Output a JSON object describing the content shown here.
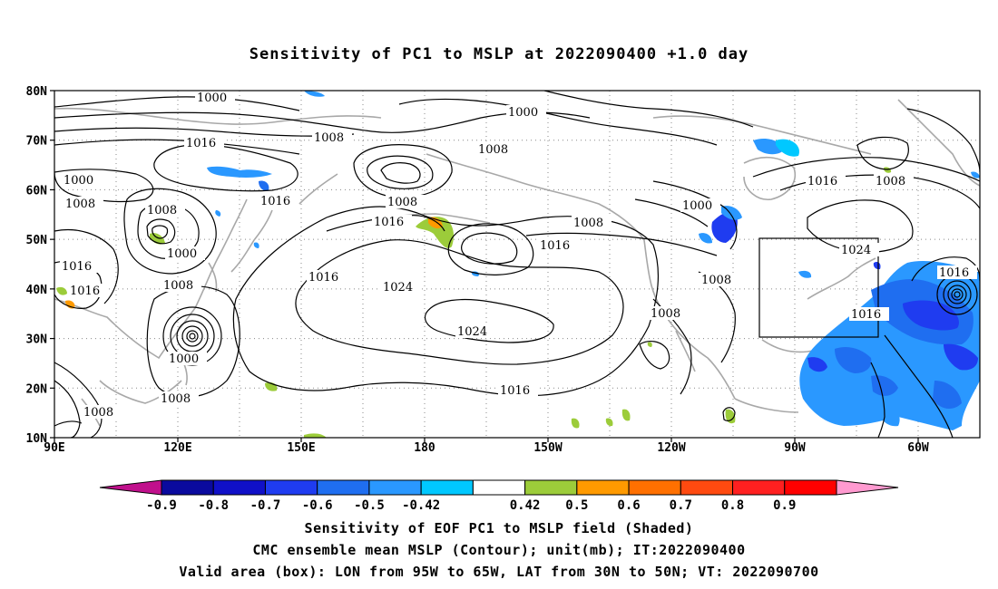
{
  "title": "Sensitivity of PC1 to MSLP at 2022090400 +1.0 day",
  "lat_ticks": [
    "80N",
    "70N",
    "60N",
    "50N",
    "40N",
    "30N",
    "20N",
    "10N"
  ],
  "lon_ticks": [
    "90E",
    "120E",
    "150E",
    "180",
    "150W",
    "120W",
    "90W",
    "60W"
  ],
  "contour_labels": [
    "1000",
    "1008",
    "1016",
    "1024"
  ],
  "colorbar": {
    "ticks": [
      "-0.9",
      "-0.8",
      "-0.7",
      "-0.6",
      "-0.5",
      "-0.42",
      "0.42",
      "0.5",
      "0.6",
      "0.7",
      "0.8",
      "0.9"
    ],
    "colors": [
      "#c0108c",
      "#0a0a9e",
      "#1010c8",
      "#1f3cf0",
      "#1f6ef0",
      "#2a98ff",
      "#00c8ff",
      "#ffffff",
      "#9ccc3a",
      "#ff9a00",
      "#ff7000",
      "#ff4a10",
      "#ff2020",
      "#ff0000",
      "#ff9ad0"
    ]
  },
  "box": {
    "lon_from": "95W",
    "lon_to": "65W",
    "lat_from": "30N",
    "lat_to": "50N"
  },
  "captions": [
    "Sensitivity of EOF PC1 to MSLP field (Shaded)",
    "CMC ensemble mean MSLP (Contour); unit(mb); IT:2022090400",
    "Valid area (box): LON from 95W to 65W, LAT from 30N to 50N; VT: 2022090700"
  ]
}
